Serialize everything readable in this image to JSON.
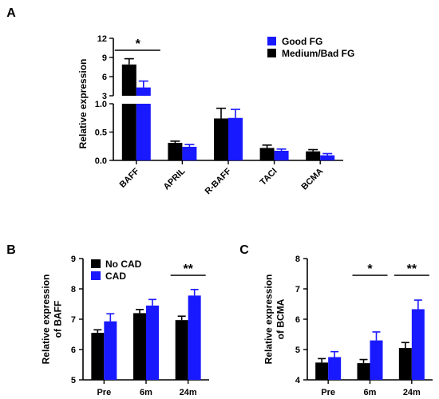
{
  "colors": {
    "good": "#1919ff",
    "medium": "#000000",
    "no_cad": "#000000",
    "cad": "#1919ff"
  },
  "chart_data": [
    {
      "panel": "A",
      "type": "bar",
      "ylabel": "Relative expression",
      "categories": [
        "BAFF",
        "APRIL",
        "R-BAFF",
        "TACI",
        "BCMA"
      ],
      "axis_break": {
        "lower_range": [
          0,
          1.0
        ],
        "upper_range": [
          3,
          12
        ]
      },
      "lower_ticks": [
        "0.0",
        "0.5",
        "1.0"
      ],
      "upper_ticks": [
        "3",
        "6",
        "9",
        "12"
      ],
      "legend": [
        "Good FG",
        "Medium/Bad FG"
      ],
      "series": [
        {
          "name": "Medium/Bad FG",
          "color_key": "medium",
          "values": [
            7.9,
            0.31,
            0.74,
            0.22,
            0.16
          ],
          "errors": [
            0.9,
            0.03,
            0.18,
            0.05,
            0.03
          ]
        },
        {
          "name": "Good FG",
          "color_key": "good",
          "values": [
            4.3,
            0.24,
            0.75,
            0.17,
            0.09
          ],
          "errors": [
            1.0,
            0.04,
            0.15,
            0.03,
            0.03
          ]
        }
      ],
      "significance": [
        {
          "label": "*",
          "category": "BAFF"
        }
      ]
    },
    {
      "panel": "B",
      "type": "bar",
      "ylabel": [
        "Relative expression",
        "of BAFF"
      ],
      "categories": [
        "Pre",
        "6m",
        "24m"
      ],
      "ylim": [
        5,
        9
      ],
      "yticks": [
        "5",
        "6",
        "7",
        "8",
        "9"
      ],
      "legend": [
        "No CAD",
        "CAD"
      ],
      "series": [
        {
          "name": "No CAD",
          "color_key": "no_cad",
          "values": [
            6.55,
            7.2,
            6.97
          ],
          "errors": [
            0.1,
            0.12,
            0.13
          ]
        },
        {
          "name": "CAD",
          "color_key": "cad",
          "values": [
            6.93,
            7.45,
            7.78
          ],
          "errors": [
            0.25,
            0.2,
            0.2
          ]
        }
      ],
      "significance": [
        {
          "label": "**",
          "category": "24m"
        }
      ]
    },
    {
      "panel": "C",
      "type": "bar",
      "ylabel": [
        "Relative expression",
        "of BCMA"
      ],
      "categories": [
        "Pre",
        "6m",
        "24m"
      ],
      "ylim": [
        4,
        8
      ],
      "yticks": [
        "4",
        "5",
        "6",
        "7",
        "8"
      ],
      "series": [
        {
          "name": "No CAD",
          "color_key": "no_cad",
          "values": [
            4.57,
            4.55,
            5.05
          ],
          "errors": [
            0.13,
            0.12,
            0.18
          ]
        },
        {
          "name": "CAD",
          "color_key": "cad",
          "values": [
            4.75,
            5.3,
            6.33
          ],
          "errors": [
            0.18,
            0.28,
            0.3
          ]
        }
      ],
      "significance": [
        {
          "label": "*",
          "category": "6m"
        },
        {
          "label": "**",
          "category": "24m"
        }
      ]
    }
  ]
}
